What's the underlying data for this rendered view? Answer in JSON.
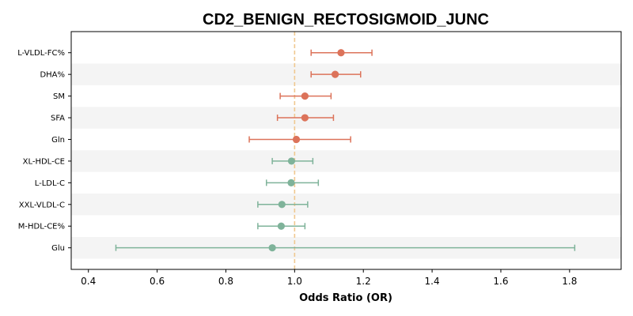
{
  "chart_data": {
    "type": "forest",
    "title": "CD2_BENIGN_RECTOSIGMOID_JUNC",
    "xlabel": "Odds Ratio (OR)",
    "ylabel": "",
    "xlim": [
      0.35,
      1.95
    ],
    "xticks": [
      0.4,
      0.6,
      0.8,
      1.0,
      1.2,
      1.4,
      1.6,
      1.8
    ],
    "xtick_labels": [
      "0.4",
      "0.6",
      "0.8",
      "1.0",
      "1.2",
      "1.4",
      "1.6",
      "1.8"
    ],
    "reference_line": 1.0,
    "grid": false,
    "colors": {
      "risk": "#dc735a",
      "protective": "#7fb39a",
      "reference_line": "#f0c890",
      "band": "#f4f4f4"
    },
    "rows": [
      {
        "label": "L-VLDL-FC%",
        "or": 1.135,
        "lower": 1.048,
        "upper": 1.225,
        "group": "risk"
      },
      {
        "label": "DHA%",
        "or": 1.118,
        "lower": 1.048,
        "upper": 1.192,
        "group": "risk"
      },
      {
        "label": "SM",
        "or": 1.03,
        "lower": 0.958,
        "upper": 1.106,
        "group": "risk"
      },
      {
        "label": "SFA",
        "or": 1.03,
        "lower": 0.95,
        "upper": 1.113,
        "group": "risk"
      },
      {
        "label": "Gln",
        "or": 1.005,
        "lower": 0.868,
        "upper": 1.163,
        "group": "risk"
      },
      {
        "label": "XL-HDL-CE",
        "or": 0.991,
        "lower": 0.935,
        "upper": 1.053,
        "group": "protective"
      },
      {
        "label": "L-LDL-C",
        "or": 0.99,
        "lower": 0.918,
        "upper": 1.069,
        "group": "protective"
      },
      {
        "label": "XXL-VLDL-C",
        "or": 0.963,
        "lower": 0.893,
        "upper": 1.038,
        "group": "protective"
      },
      {
        "label": "M-HDL-CE%",
        "or": 0.961,
        "lower": 0.893,
        "upper": 1.03,
        "group": "protective"
      },
      {
        "label": "Glu",
        "or": 0.935,
        "lower": 0.48,
        "upper": 1.815,
        "group": "protective"
      }
    ]
  }
}
